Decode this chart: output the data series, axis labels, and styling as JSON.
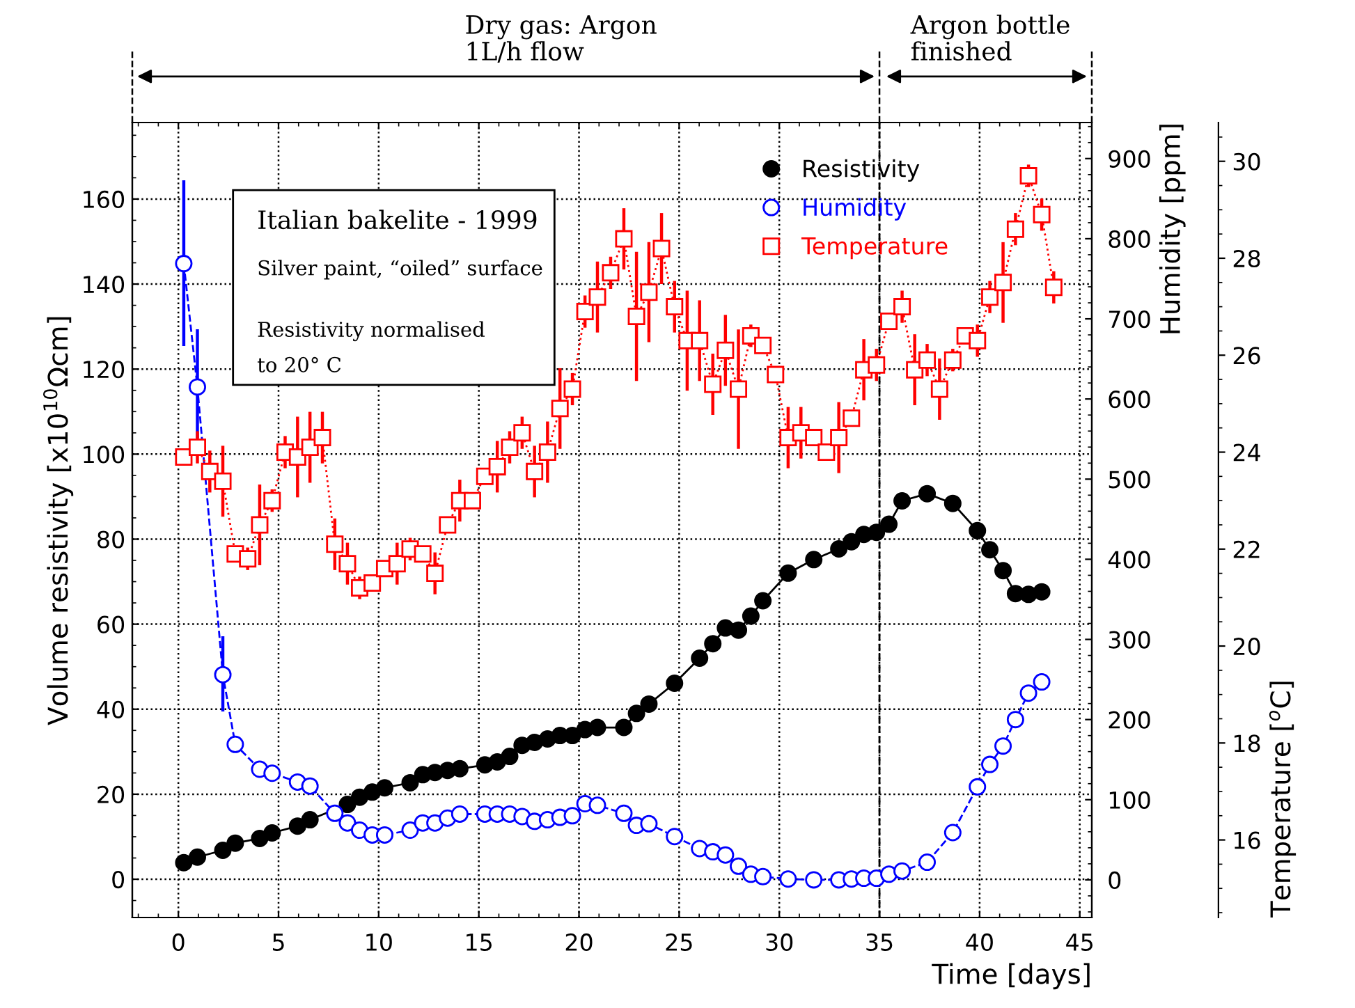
{
  "chart_data": {
    "type": "line",
    "xlabel": "Time [days]",
    "ylabel": "Volume resistivity [x10$^{10}$Ωcm]",
    "y2label": "Humidity [ppm]",
    "y3label": "Temperature [$^{o}$C]",
    "xlim": [
      -2.3,
      45.6
    ],
    "xticks": [
      0,
      5,
      10,
      15,
      20,
      25,
      30,
      35,
      40,
      45
    ],
    "ylim": [
      -9,
      178
    ],
    "yticks": [
      0,
      20,
      40,
      60,
      80,
      100,
      120,
      140,
      160
    ],
    "y2lim": [
      -47,
      945
    ],
    "y2ticks": [
      0,
      100,
      200,
      300,
      400,
      500,
      600,
      700,
      800,
      900
    ],
    "y3lim": [
      14.4,
      30.8
    ],
    "y3ticks": [
      16,
      18,
      20,
      22,
      24,
      26,
      28,
      30
    ],
    "grid": true,
    "legend": "top right",
    "ref_lines": [
      {
        "axis": "x",
        "value": 35,
        "line_style": "dashed",
        "color": "#000000"
      }
    ],
    "annotations": [
      "Italian bakelite - 1999",
      "Silver paint, “oiled” surface",
      "Resistivity normalised\nto 20° C",
      "Dry gas: Argon\n1L/h flow",
      "Argon bottle\nfinished"
    ],
    "series": [
      {
        "name": "Resistivity",
        "color": "#000000",
        "marker": "circle",
        "line_style": "solid",
        "x": [
          0.27,
          0.95,
          2.22,
          2.84,
          4.06,
          4.68,
          5.95,
          6.57,
          8.44,
          9.05,
          9.68,
          10.3,
          11.57,
          12.2,
          12.81,
          13.44,
          14.05,
          15.3,
          15.92,
          16.54,
          17.16,
          17.78,
          18.43,
          19.05,
          19.67,
          20.3,
          20.92,
          22.24,
          22.87,
          23.49,
          24.77,
          26.02,
          26.68,
          27.31,
          27.96,
          28.58,
          29.18,
          30.44,
          31.72,
          32.97,
          33.6,
          34.22,
          34.85,
          35.47,
          36.13,
          37.38,
          38.66,
          39.89,
          40.51,
          41.17,
          41.79,
          42.44,
          43.1
        ],
        "values": [
          3.9,
          5.2,
          6.8,
          8.5,
          9.6,
          10.9,
          12.5,
          14.0,
          17.6,
          19.3,
          20.5,
          21.5,
          22.7,
          24.6,
          25.1,
          25.6,
          26.0,
          26.9,
          27.6,
          28.9,
          31.5,
          32.2,
          33.0,
          33.8,
          33.8,
          35.2,
          35.7,
          35.7,
          39.0,
          41.2,
          46.1,
          52.0,
          55.4,
          59.1,
          58.6,
          61.9,
          65.5,
          72.0,
          75.2,
          77.7,
          79.4,
          81.1,
          81.6,
          83.5,
          89.0,
          90.7,
          88.4,
          82.0,
          77.5,
          72.6,
          67.2,
          67.0,
          67.6
        ]
      },
      {
        "name": "Humidity",
        "color": "#0000ff",
        "marker": "circle",
        "line_style": "dashed",
        "axis": "y2",
        "x": [
          0.27,
          0.95,
          2.22,
          2.84,
          4.06,
          4.68,
          5.95,
          6.57,
          7.81,
          8.44,
          9.05,
          9.68,
          10.3,
          11.57,
          12.2,
          12.81,
          13.44,
          14.05,
          15.3,
          15.92,
          16.54,
          17.16,
          17.78,
          18.43,
          19.05,
          19.67,
          20.3,
          20.92,
          22.24,
          22.87,
          23.49,
          24.77,
          26.02,
          26.68,
          27.31,
          27.96,
          28.58,
          29.18,
          30.44,
          31.72,
          32.97,
          33.6,
          34.22,
          34.85,
          35.47,
          36.13,
          37.38,
          38.66,
          39.89,
          40.51,
          41.17,
          41.79,
          42.44,
          43.1
        ],
        "values": [
          769,
          615,
          256,
          169,
          138,
          133,
          122,
          117,
          83,
          71,
          62,
          56,
          56,
          62,
          71,
          71,
          77,
          82,
          82,
          82,
          82,
          79,
          73,
          75,
          78,
          80,
          95,
          93,
          83,
          68,
          70,
          54,
          39,
          35,
          31,
          17,
          7,
          4,
          1,
          0,
          0,
          1,
          2,
          2,
          7,
          11,
          22,
          59,
          116,
          144,
          167,
          200,
          233,
          247
        ],
        "errors": [
          [
            668,
            871
          ],
          [
            553,
            685
          ],
          [
            212,
            302
          ],
          null,
          null,
          null,
          null,
          null,
          null,
          null,
          null,
          null,
          null,
          null,
          null,
          null,
          null,
          null,
          null,
          null,
          null,
          null,
          null,
          null,
          null,
          null,
          null,
          null,
          null,
          null,
          null,
          null,
          null,
          null,
          null,
          null,
          null,
          null,
          null,
          null,
          null,
          null,
          null,
          null,
          null,
          null,
          null,
          null,
          null,
          null,
          null,
          null,
          null,
          null
        ]
      },
      {
        "name": "Temperature",
        "color": "#ff0000",
        "marker": "square",
        "line_style": "dotted",
        "axis": "y3",
        "x": [
          0.27,
          0.95,
          1.57,
          2.22,
          2.84,
          3.46,
          4.06,
          4.68,
          5.33,
          5.95,
          6.57,
          7.19,
          7.81,
          8.44,
          9.05,
          9.68,
          10.3,
          10.92,
          11.57,
          12.2,
          12.81,
          13.44,
          14.05,
          14.68,
          15.3,
          15.92,
          16.54,
          17.16,
          17.78,
          18.43,
          19.05,
          19.67,
          20.3,
          20.92,
          21.58,
          22.24,
          22.87,
          23.49,
          24.12,
          24.77,
          25.4,
          26.02,
          26.68,
          27.31,
          27.96,
          28.58,
          29.18,
          29.81,
          30.44,
          31.08,
          31.72,
          32.35,
          32.97,
          33.6,
          34.22,
          34.85,
          35.47,
          36.13,
          36.76,
          37.38,
          38.0,
          38.66,
          39.28,
          39.89,
          40.51,
          41.17,
          41.79,
          42.44,
          43.1,
          43.7
        ],
        "values": [
          23.9,
          24.1,
          23.6,
          23.4,
          21.9,
          21.8,
          22.5,
          23.0,
          24.0,
          23.9,
          24.1,
          24.3,
          22.1,
          21.7,
          21.2,
          21.3,
          21.6,
          21.7,
          22.0,
          21.9,
          21.5,
          22.5,
          23.0,
          23.0,
          23.5,
          23.7,
          24.1,
          24.4,
          23.6,
          24.0,
          24.9,
          25.3,
          26.9,
          27.2,
          27.7,
          28.4,
          26.8,
          27.3,
          28.2,
          27.0,
          26.3,
          26.3,
          25.4,
          26.1,
          25.3,
          26.4,
          26.2,
          25.6,
          24.3,
          24.4,
          24.3,
          24.0,
          24.3,
          24.7,
          25.7,
          25.8,
          26.7,
          27.0,
          25.7,
          25.9,
          25.3,
          25.9,
          26.4,
          26.3,
          27.2,
          27.5,
          28.6,
          29.7,
          28.9,
          27.4
        ],
        "errors": [
          null,
          0.3,
          0.4,
          0.7,
          null,
          0.2,
          0.8,
          0.2,
          0.3,
          0.8,
          0.7,
          0.5,
          0.5,
          0.4,
          0.2,
          null,
          null,
          0.4,
          0.2,
          null,
          0.4,
          null,
          0.4,
          null,
          null,
          0.5,
          0.3,
          0.3,
          0.5,
          0.6,
          0.8,
          0.3,
          0.3,
          0.7,
          0.3,
          0.6,
          1.3,
          1.0,
          0.7,
          0.5,
          1.0,
          0.8,
          0.6,
          0.7,
          1.2,
          0.2,
          null,
          null,
          0.6,
          0.5,
          null,
          null,
          0.7,
          null,
          0.6,
          0.3,
          null,
          0.3,
          0.7,
          0.3,
          0.6,
          0.2,
          null,
          0.3,
          0.3,
          0.8,
          0.3,
          0.2,
          0.3,
          0.3
        ]
      }
    ]
  }
}
